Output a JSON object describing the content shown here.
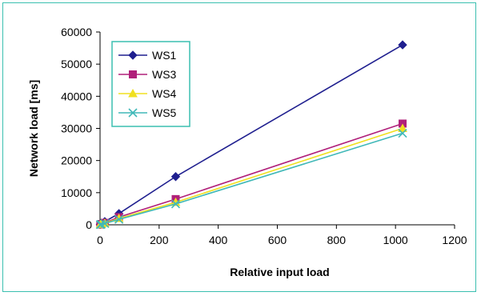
{
  "chart_data": {
    "type": "line",
    "title": "",
    "xlabel": "Relative input load",
    "ylabel": "Network load [ms]",
    "xlim": [
      0,
      1200
    ],
    "ylim": [
      0,
      60000
    ],
    "xticks": [
      0,
      200,
      400,
      600,
      800,
      1000,
      1200
    ],
    "yticks": [
      0,
      10000,
      20000,
      30000,
      40000,
      50000,
      60000
    ],
    "grid": false,
    "legend_position": "top-left",
    "series": [
      {
        "name": "WS1",
        "color": "#1f1f8f",
        "marker": "diamond",
        "points": [
          [
            1,
            200
          ],
          [
            4,
            500
          ],
          [
            16,
            1000
          ],
          [
            64,
            3500
          ],
          [
            256,
            15000
          ],
          [
            1024,
            56000
          ]
        ]
      },
      {
        "name": "WS3",
        "color": "#b0207a",
        "marker": "square",
        "points": [
          [
            1,
            100
          ],
          [
            4,
            250
          ],
          [
            16,
            600
          ],
          [
            64,
            2400
          ],
          [
            256,
            8000
          ],
          [
            1024,
            31500
          ]
        ]
      },
      {
        "name": "WS4",
        "color": "#f0e020",
        "marker": "triangle",
        "points": [
          [
            1,
            80
          ],
          [
            4,
            200
          ],
          [
            16,
            500
          ],
          [
            64,
            2000
          ],
          [
            256,
            7000
          ],
          [
            1024,
            30000
          ]
        ]
      },
      {
        "name": "WS5",
        "color": "#40b8b8",
        "marker": "x",
        "points": [
          [
            1,
            60
          ],
          [
            4,
            150
          ],
          [
            16,
            400
          ],
          [
            64,
            1700
          ],
          [
            256,
            6500
          ],
          [
            1024,
            28500
          ]
        ]
      }
    ]
  }
}
